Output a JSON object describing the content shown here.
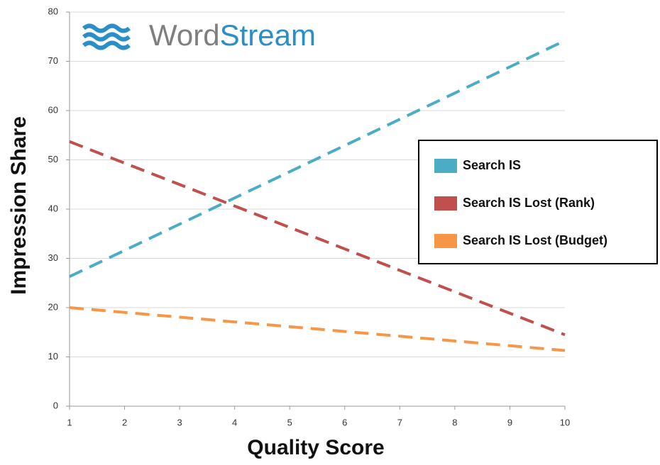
{
  "chart_data": {
    "type": "line",
    "xlabel": "Quality Score",
    "ylabel": "Impression Share",
    "logo_text": [
      "Word",
      "Stream"
    ],
    "x": [
      1,
      10
    ],
    "series": [
      {
        "name": "Search IS",
        "color": "#4bacc6",
        "values": [
          26.3,
          74.2
        ]
      },
      {
        "name": "Search IS Lost (Rank)",
        "color": "#c0504d",
        "values": [
          53.7,
          14.5
        ]
      },
      {
        "name": "Search IS Lost (Budget)",
        "color": "#f79646",
        "values": [
          20,
          11.3
        ]
      }
    ],
    "xlim": [
      1,
      10
    ],
    "xticks": [
      1,
      2,
      3,
      4,
      5,
      6,
      7,
      8,
      9,
      10
    ],
    "ylim": [
      0,
      80
    ],
    "yticks": [
      0,
      10,
      20,
      30,
      40,
      50,
      60,
      70,
      80
    ],
    "grid": true,
    "dashed": true
  }
}
